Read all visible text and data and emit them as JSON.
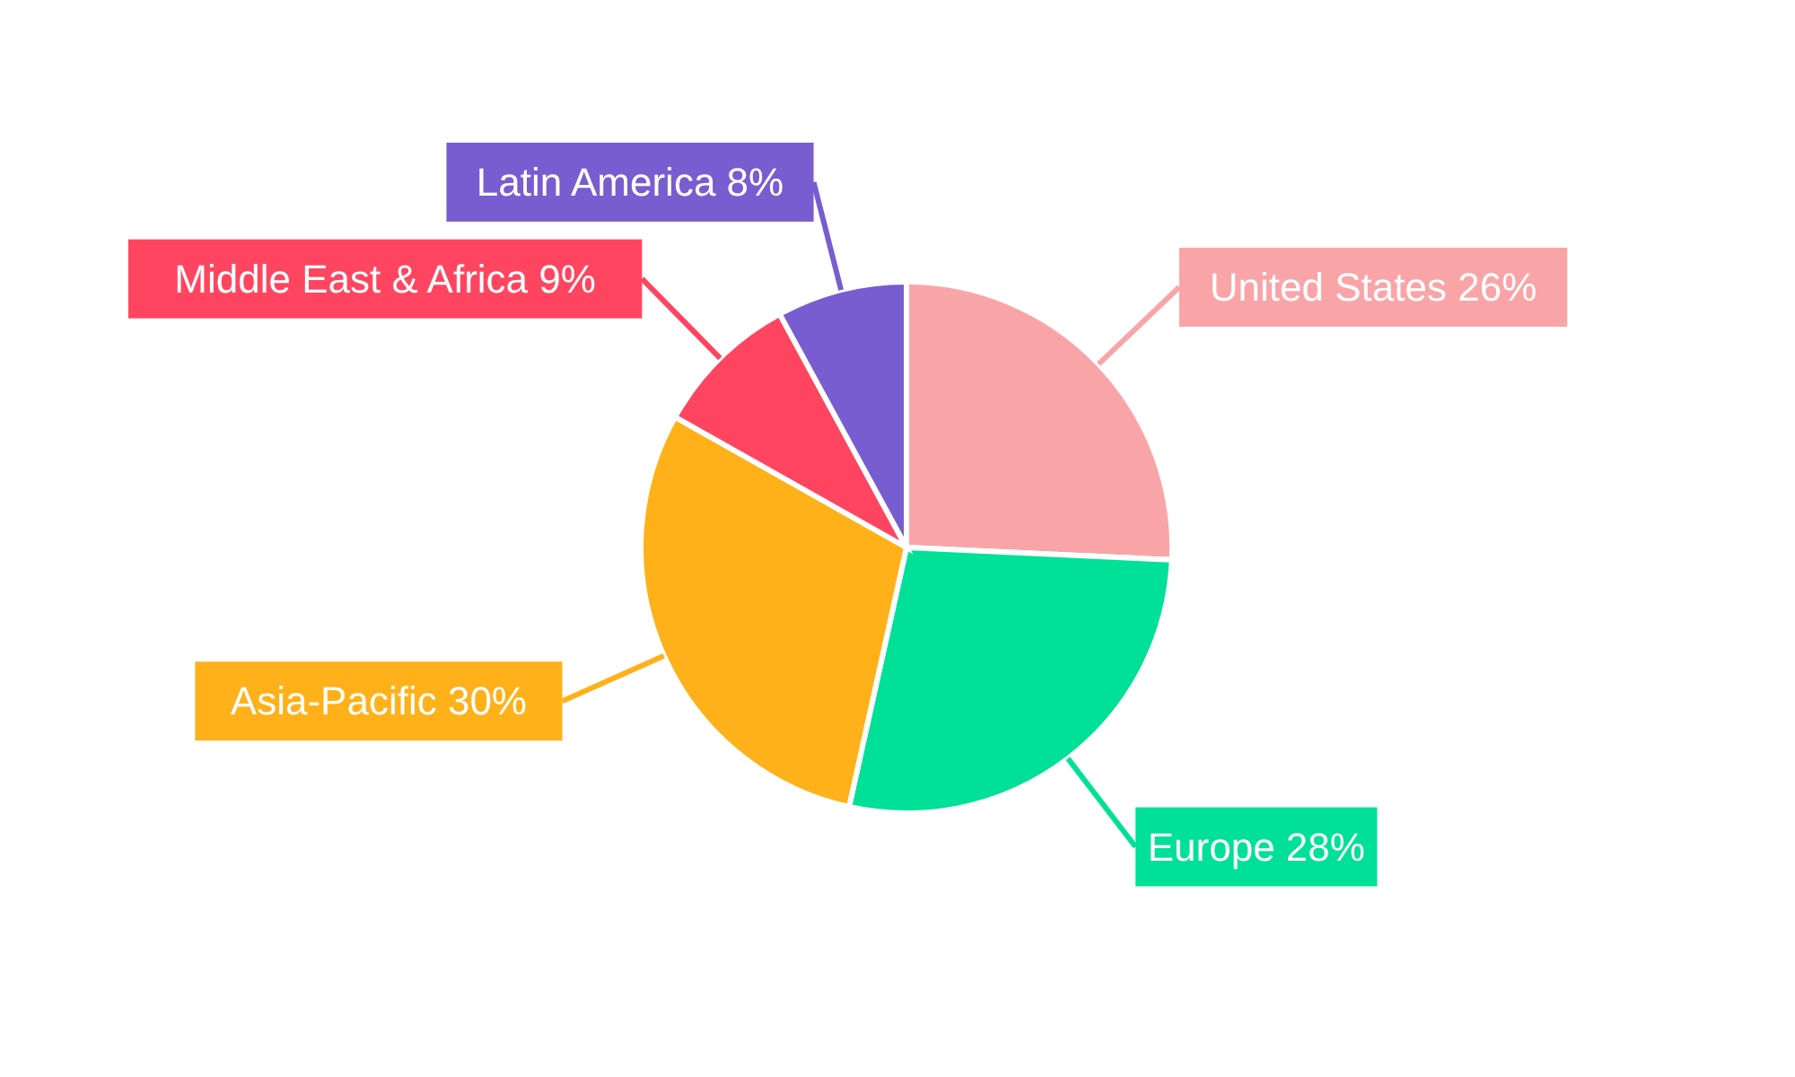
{
  "chart_data": {
    "type": "pie",
    "categories": [
      "United States",
      "Europe",
      "Asia-Pacific",
      "Middle East & Africa",
      "Latin America"
    ],
    "values": [
      26,
      28,
      30,
      9,
      8
    ],
    "value_labels": [
      "26%",
      "28%",
      "30%",
      "9%",
      "8%"
    ],
    "colors": [
      "#f9a5a8",
      "#00e096",
      "#ffb11a",
      "#ff4560",
      "#775dd0"
    ],
    "legend": false
  }
}
